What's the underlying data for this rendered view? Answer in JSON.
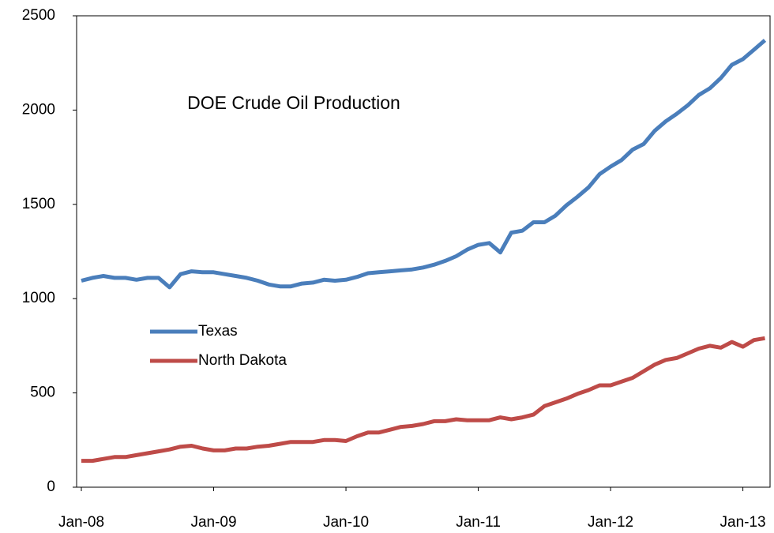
{
  "chart_data": {
    "type": "line",
    "title": "DOE Crude Oil Production",
    "categories": [
      "Jan-08",
      null,
      null,
      null,
      null,
      null,
      null,
      null,
      null,
      null,
      null,
      null,
      "Jan-09",
      null,
      null,
      null,
      null,
      null,
      null,
      null,
      null,
      null,
      null,
      null,
      "Jan-10",
      null,
      null,
      null,
      null,
      null,
      null,
      null,
      null,
      null,
      null,
      null,
      "Jan-11",
      null,
      null,
      null,
      null,
      null,
      null,
      null,
      null,
      null,
      null,
      null,
      "Jan-12",
      null,
      null,
      null,
      null,
      null,
      null,
      null,
      null,
      null,
      null,
      null,
      "Jan-13",
      null,
      null
    ],
    "series": [
      {
        "name": "Texas",
        "color": "#4a7ebb",
        "values": [
          1095,
          1110,
          1120,
          1110,
          1110,
          1100,
          1110,
          1110,
          1060,
          1130,
          1145,
          1140,
          1140,
          1130,
          1120,
          1110,
          1095,
          1075,
          1065,
          1065,
          1080,
          1085,
          1100,
          1095,
          1100,
          1115,
          1135,
          1140,
          1145,
          1150,
          1155,
          1165,
          1180,
          1200,
          1225,
          1260,
          1285,
          1295,
          1245,
          1350,
          1360,
          1405,
          1405,
          1440,
          1495,
          1540,
          1590,
          1660,
          1700,
          1735,
          1790,
          1820,
          1890,
          1940,
          1980,
          2025,
          2080,
          2115,
          2170,
          2240,
          2270,
          2320,
          2370
        ]
      },
      {
        "name": "North Dakota",
        "color": "#be4b48",
        "values": [
          140,
          140,
          150,
          160,
          160,
          170,
          180,
          190,
          200,
          215,
          220,
          205,
          195,
          195,
          205,
          205,
          215,
          220,
          230,
          240,
          240,
          240,
          250,
          250,
          245,
          270,
          290,
          290,
          305,
          320,
          325,
          335,
          350,
          350,
          360,
          355,
          355,
          355,
          370,
          360,
          370,
          385,
          430,
          450,
          470,
          495,
          515,
          540,
          540,
          560,
          580,
          615,
          650,
          675,
          685,
          710,
          735,
          750,
          740,
          770,
          745,
          780,
          790
        ]
      }
    ],
    "ylim": [
      0,
      2500
    ],
    "yticks": [
      0,
      500,
      1000,
      1500,
      2000,
      2500
    ],
    "legend": "left"
  }
}
